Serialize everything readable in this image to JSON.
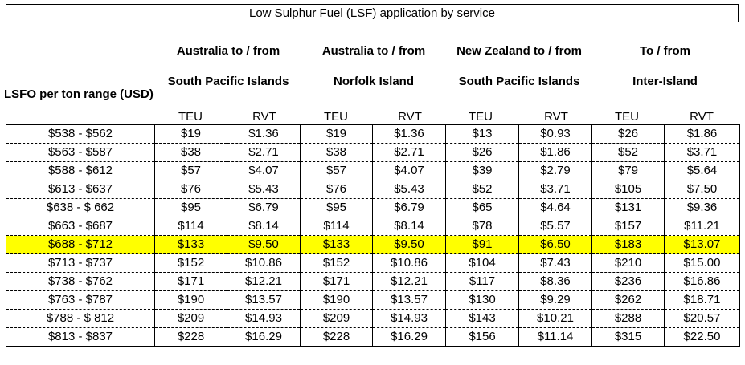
{
  "title": "Low Sulphur Fuel (LSF) application by service",
  "row_header": "LSFO per ton range (USD)",
  "groups": [
    {
      "line1": "Australia to / from",
      "line2": "South Pacific Islands"
    },
    {
      "line1": "Australia to / from",
      "line2": "Norfolk Island"
    },
    {
      "line1": "New Zealand to / from",
      "line2": "South Pacific Islands"
    },
    {
      "line1": "To / from",
      "line2": "Inter-Island"
    }
  ],
  "units": [
    "TEU",
    "RVT",
    "TEU",
    "RVT",
    "TEU",
    "RVT",
    "TEU",
    "RVT"
  ],
  "highlight_color": "#ffff00",
  "rows": [
    {
      "range": "$538 - $562",
      "vals": [
        "$19",
        "$1.36",
        "$19",
        "$1.36",
        "$13",
        "$0.93",
        "$26",
        "$1.86"
      ]
    },
    {
      "range": "$563 - $587",
      "vals": [
        "$38",
        "$2.71",
        "$38",
        "$2.71",
        "$26",
        "$1.86",
        "$52",
        "$3.71"
      ]
    },
    {
      "range": "$588 - $612",
      "vals": [
        "$57",
        "$4.07",
        "$57",
        "$4.07",
        "$39",
        "$2.79",
        "$79",
        "$5.64"
      ]
    },
    {
      "range": "$613 - $637",
      "vals": [
        "$76",
        "$5.43",
        "$76",
        "$5.43",
        "$52",
        "$3.71",
        "$105",
        "$7.50"
      ]
    },
    {
      "range": "$638 - $ 662",
      "vals": [
        "$95",
        "$6.79",
        "$95",
        "$6.79",
        "$65",
        "$4.64",
        "$131",
        "$9.36"
      ]
    },
    {
      "range": "$663 - $687",
      "vals": [
        "$114",
        "$8.14",
        "$114",
        "$8.14",
        "$78",
        "$5.57",
        "$157",
        "$11.21"
      ]
    },
    {
      "range": "$688 - $712",
      "highlight": true,
      "vals": [
        "$133",
        "$9.50",
        "$133",
        "$9.50",
        "$91",
        "$6.50",
        "$183",
        "$13.07"
      ]
    },
    {
      "range": "$713 - $737",
      "vals": [
        "$152",
        "$10.86",
        "$152",
        "$10.86",
        "$104",
        "$7.43",
        "$210",
        "$15.00"
      ]
    },
    {
      "range": "$738 - $762",
      "vals": [
        "$171",
        "$12.21",
        "$171",
        "$12.21",
        "$117",
        "$8.36",
        "$236",
        "$16.86"
      ]
    },
    {
      "range": "$763 - $787",
      "vals": [
        "$190",
        "$13.57",
        "$190",
        "$13.57",
        "$130",
        "$9.29",
        "$262",
        "$18.71"
      ]
    },
    {
      "range": "$788 - $ 812",
      "vals": [
        "$209",
        "$14.93",
        "$209",
        "$14.93",
        "$143",
        "$10.21",
        "$288",
        "$20.57"
      ]
    },
    {
      "range": "$813 - $837",
      "vals": [
        "$228",
        "$16.29",
        "$228",
        "$16.29",
        "$156",
        "$11.14",
        "$315",
        "$22.50"
      ]
    }
  ]
}
